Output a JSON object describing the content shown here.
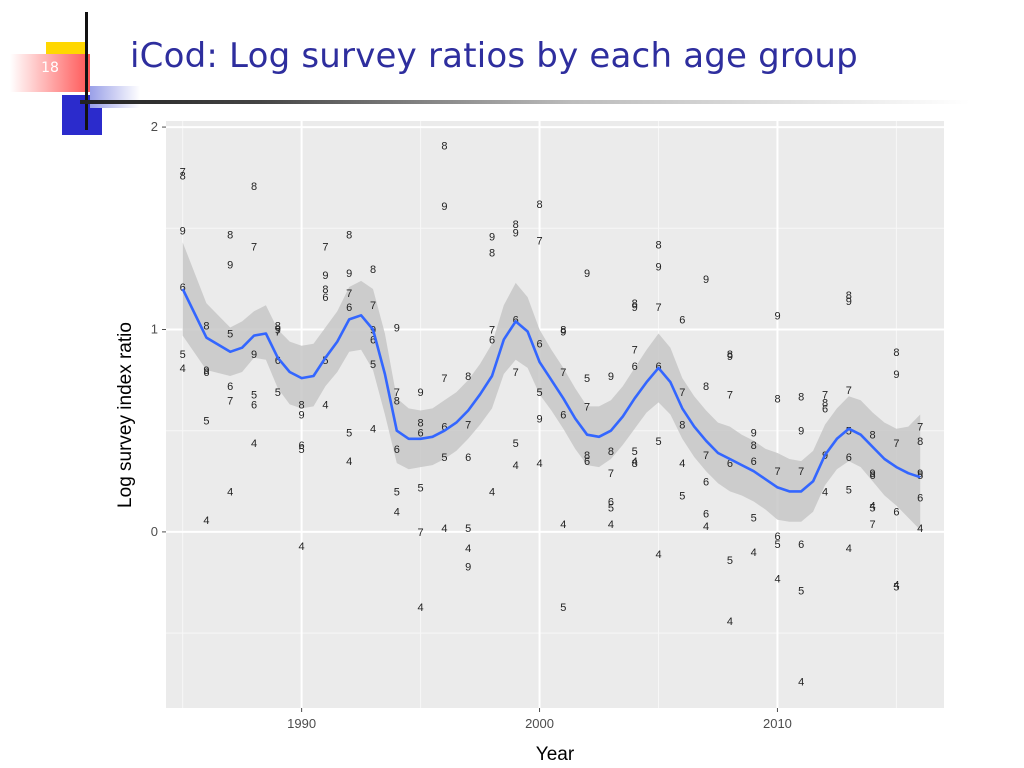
{
  "slide": {
    "title": "iCod: Log survey ratios by each age group",
    "number": "18"
  },
  "colors": {
    "title": "#2e2e9e",
    "accent_yellow": "#ffd700",
    "accent_blue": "#2b2bcc",
    "panel": "#ebebeb",
    "grid": "#ffffff",
    "smooth_line": "#3366ff",
    "ribbon": "#c7c7c7"
  },
  "chart_data": {
    "type": "scatter",
    "title": "",
    "xlabel": "Year",
    "ylabel": "Log survey index ratio",
    "xlim": [
      1984.3,
      2017.0
    ],
    "ylim": [
      -0.87,
      2.03
    ],
    "xticks": [
      1990,
      2000,
      2010
    ],
    "xtick_labels": [
      "1990",
      "2000",
      "2010"
    ],
    "yticks": [
      0,
      1,
      2
    ],
    "ytick_labels": [
      "0",
      "1",
      "2"
    ],
    "points": [
      {
        "x": 1985,
        "y": 1.78,
        "label": "7"
      },
      {
        "x": 1985,
        "y": 1.76,
        "label": "8"
      },
      {
        "x": 1985,
        "y": 1.49,
        "label": "9"
      },
      {
        "x": 1985,
        "y": 1.21,
        "label": "6"
      },
      {
        "x": 1985,
        "y": 0.88,
        "label": "5"
      },
      {
        "x": 1985,
        "y": 0.81,
        "label": "4"
      },
      {
        "x": 1986,
        "y": 1.02,
        "label": "8"
      },
      {
        "x": 1986,
        "y": 0.8,
        "label": "9"
      },
      {
        "x": 1986,
        "y": 0.79,
        "label": "6"
      },
      {
        "x": 1986,
        "y": 0.55,
        "label": "5"
      },
      {
        "x": 1986,
        "y": 0.06,
        "label": "4"
      },
      {
        "x": 1987,
        "y": 1.47,
        "label": "8"
      },
      {
        "x": 1987,
        "y": 1.32,
        "label": "9"
      },
      {
        "x": 1987,
        "y": 0.98,
        "label": "5"
      },
      {
        "x": 1987,
        "y": 0.72,
        "label": "6"
      },
      {
        "x": 1987,
        "y": 0.65,
        "label": "7"
      },
      {
        "x": 1987,
        "y": 0.2,
        "label": "4"
      },
      {
        "x": 1988,
        "y": 1.71,
        "label": "8"
      },
      {
        "x": 1988,
        "y": 1.41,
        "label": "7"
      },
      {
        "x": 1988,
        "y": 0.88,
        "label": "9"
      },
      {
        "x": 1988,
        "y": 0.68,
        "label": "5"
      },
      {
        "x": 1988,
        "y": 0.63,
        "label": "6"
      },
      {
        "x": 1988,
        "y": 0.44,
        "label": "4"
      },
      {
        "x": 1989,
        "y": 1.02,
        "label": "8"
      },
      {
        "x": 1989,
        "y": 1.0,
        "label": "9"
      },
      {
        "x": 1989,
        "y": 0.99,
        "label": "7"
      },
      {
        "x": 1989,
        "y": 0.85,
        "label": "6"
      },
      {
        "x": 1989,
        "y": 0.69,
        "label": "5"
      },
      {
        "x": 1990,
        "y": 0.63,
        "label": "8"
      },
      {
        "x": 1990,
        "y": 0.58,
        "label": "9"
      },
      {
        "x": 1990,
        "y": 0.43,
        "label": "6"
      },
      {
        "x": 1990,
        "y": 0.41,
        "label": "5"
      },
      {
        "x": 1990,
        "y": -0.07,
        "label": "4"
      },
      {
        "x": 1991,
        "y": 1.41,
        "label": "7"
      },
      {
        "x": 1991,
        "y": 1.27,
        "label": "9"
      },
      {
        "x": 1991,
        "y": 1.2,
        "label": "8"
      },
      {
        "x": 1991,
        "y": 1.16,
        "label": "6"
      },
      {
        "x": 1991,
        "y": 0.85,
        "label": "5"
      },
      {
        "x": 1991,
        "y": 0.63,
        "label": "4"
      },
      {
        "x": 1992,
        "y": 1.47,
        "label": "8"
      },
      {
        "x": 1992,
        "y": 1.28,
        "label": "9"
      },
      {
        "x": 1992,
        "y": 1.18,
        "label": "7"
      },
      {
        "x": 1992,
        "y": 1.11,
        "label": "6"
      },
      {
        "x": 1992,
        "y": 0.49,
        "label": "5"
      },
      {
        "x": 1992,
        "y": 0.35,
        "label": "4"
      },
      {
        "x": 1993,
        "y": 1.3,
        "label": "8"
      },
      {
        "x": 1993,
        "y": 1.12,
        "label": "7"
      },
      {
        "x": 1993,
        "y": 1.0,
        "label": "9"
      },
      {
        "x": 1993,
        "y": 0.95,
        "label": "6"
      },
      {
        "x": 1993,
        "y": 0.83,
        "label": "5"
      },
      {
        "x": 1993,
        "y": 0.51,
        "label": "4"
      },
      {
        "x": 1994,
        "y": 1.01,
        "label": "9"
      },
      {
        "x": 1994,
        "y": 0.69,
        "label": "7"
      },
      {
        "x": 1994,
        "y": 0.65,
        "label": "8"
      },
      {
        "x": 1994,
        "y": 0.41,
        "label": "6"
      },
      {
        "x": 1994,
        "y": 0.2,
        "label": "5"
      },
      {
        "x": 1994,
        "y": 0.1,
        "label": "4"
      },
      {
        "x": 1995,
        "y": 0.69,
        "label": "9"
      },
      {
        "x": 1995,
        "y": 0.54,
        "label": "8"
      },
      {
        "x": 1995,
        "y": 0.49,
        "label": "6"
      },
      {
        "x": 1995,
        "y": 0.22,
        "label": "5"
      },
      {
        "x": 1995,
        "y": 0.0,
        "label": "7"
      },
      {
        "x": 1995,
        "y": -0.37,
        "label": "4"
      },
      {
        "x": 1996,
        "y": 1.91,
        "label": "8"
      },
      {
        "x": 1996,
        "y": 1.61,
        "label": "9"
      },
      {
        "x": 1996,
        "y": 0.76,
        "label": "7"
      },
      {
        "x": 1996,
        "y": 0.52,
        "label": "6"
      },
      {
        "x": 1996,
        "y": 0.37,
        "label": "5"
      },
      {
        "x": 1996,
        "y": 0.02,
        "label": "4"
      },
      {
        "x": 1997,
        "y": 0.77,
        "label": "8"
      },
      {
        "x": 1997,
        "y": 0.53,
        "label": "7"
      },
      {
        "x": 1997,
        "y": 0.37,
        "label": "6"
      },
      {
        "x": 1997,
        "y": 0.02,
        "label": "5"
      },
      {
        "x": 1997,
        "y": -0.08,
        "label": "4"
      },
      {
        "x": 1997,
        "y": -0.17,
        "label": "9"
      },
      {
        "x": 1998,
        "y": 1.46,
        "label": "9"
      },
      {
        "x": 1998,
        "y": 1.38,
        "label": "8"
      },
      {
        "x": 1998,
        "y": 1.0,
        "label": "7"
      },
      {
        "x": 1998,
        "y": 0.95,
        "label": "6"
      },
      {
        "x": 1998,
        "y": 0.2,
        "label": "4"
      },
      {
        "x": 1999,
        "y": 1.52,
        "label": "8"
      },
      {
        "x": 1999,
        "y": 1.48,
        "label": "9"
      },
      {
        "x": 1999,
        "y": 1.05,
        "label": "6"
      },
      {
        "x": 1999,
        "y": 0.79,
        "label": "7"
      },
      {
        "x": 1999,
        "y": 0.44,
        "label": "5"
      },
      {
        "x": 1999,
        "y": 0.33,
        "label": "4"
      },
      {
        "x": 2000,
        "y": 1.62,
        "label": "8"
      },
      {
        "x": 2000,
        "y": 1.44,
        "label": "7"
      },
      {
        "x": 2000,
        "y": 0.93,
        "label": "6"
      },
      {
        "x": 2000,
        "y": 0.69,
        "label": "5"
      },
      {
        "x": 2000,
        "y": 0.56,
        "label": "9"
      },
      {
        "x": 2000,
        "y": 0.34,
        "label": "4"
      },
      {
        "x": 2001,
        "y": 1.0,
        "label": "8"
      },
      {
        "x": 2001,
        "y": 0.99,
        "label": "9"
      },
      {
        "x": 2001,
        "y": 0.79,
        "label": "7"
      },
      {
        "x": 2001,
        "y": 0.58,
        "label": "6"
      },
      {
        "x": 2001,
        "y": 0.04,
        "label": "4"
      },
      {
        "x": 2001,
        "y": -0.37,
        "label": "5"
      },
      {
        "x": 2002,
        "y": 1.28,
        "label": "9"
      },
      {
        "x": 2002,
        "y": 0.76,
        "label": "5"
      },
      {
        "x": 2002,
        "y": 0.62,
        "label": "7"
      },
      {
        "x": 2002,
        "y": 0.38,
        "label": "8"
      },
      {
        "x": 2002,
        "y": 0.35,
        "label": "6"
      },
      {
        "x": 2003,
        "y": 0.77,
        "label": "9"
      },
      {
        "x": 2003,
        "y": 0.4,
        "label": "8"
      },
      {
        "x": 2003,
        "y": 0.29,
        "label": "7"
      },
      {
        "x": 2003,
        "y": 0.15,
        "label": "6"
      },
      {
        "x": 2003,
        "y": 0.12,
        "label": "5"
      },
      {
        "x": 2003,
        "y": 0.04,
        "label": "4"
      },
      {
        "x": 2004,
        "y": 1.13,
        "label": "8"
      },
      {
        "x": 2004,
        "y": 1.11,
        "label": "9"
      },
      {
        "x": 2004,
        "y": 0.9,
        "label": "7"
      },
      {
        "x": 2004,
        "y": 0.82,
        "label": "6"
      },
      {
        "x": 2004,
        "y": 0.4,
        "label": "5"
      },
      {
        "x": 2004,
        "y": 0.34,
        "label": "8"
      },
      {
        "x": 2004,
        "y": 0.35,
        "label": "4"
      },
      {
        "x": 2005,
        "y": 1.42,
        "label": "8"
      },
      {
        "x": 2005,
        "y": 1.31,
        "label": "9"
      },
      {
        "x": 2005,
        "y": 1.11,
        "label": "7"
      },
      {
        "x": 2005,
        "y": 0.82,
        "label": "6"
      },
      {
        "x": 2005,
        "y": 0.45,
        "label": "5"
      },
      {
        "x": 2005,
        "y": -0.11,
        "label": "4"
      },
      {
        "x": 2006,
        "y": 1.05,
        "label": "6"
      },
      {
        "x": 2006,
        "y": 0.69,
        "label": "7"
      },
      {
        "x": 2006,
        "y": 0.53,
        "label": "8"
      },
      {
        "x": 2006,
        "y": 0.34,
        "label": "4"
      },
      {
        "x": 2006,
        "y": 0.18,
        "label": "5"
      },
      {
        "x": 2007,
        "y": 1.25,
        "label": "9"
      },
      {
        "x": 2007,
        "y": 0.72,
        "label": "8"
      },
      {
        "x": 2007,
        "y": 0.38,
        "label": "7"
      },
      {
        "x": 2007,
        "y": 0.25,
        "label": "6"
      },
      {
        "x": 2007,
        "y": 0.09,
        "label": "6"
      },
      {
        "x": 2007,
        "y": 0.03,
        "label": "4"
      },
      {
        "x": 2008,
        "y": 0.88,
        "label": "8"
      },
      {
        "x": 2008,
        "y": 0.87,
        "label": "9"
      },
      {
        "x": 2008,
        "y": 0.68,
        "label": "7"
      },
      {
        "x": 2008,
        "y": 0.34,
        "label": "6"
      },
      {
        "x": 2008,
        "y": -0.14,
        "label": "5"
      },
      {
        "x": 2008,
        "y": -0.44,
        "label": "4"
      },
      {
        "x": 2009,
        "y": 0.49,
        "label": "9"
      },
      {
        "x": 2009,
        "y": 0.43,
        "label": "8"
      },
      {
        "x": 2009,
        "y": 0.35,
        "label": "6"
      },
      {
        "x": 2009,
        "y": 0.07,
        "label": "5"
      },
      {
        "x": 2009,
        "y": -0.1,
        "label": "4"
      },
      {
        "x": 2010,
        "y": 1.07,
        "label": "9"
      },
      {
        "x": 2010,
        "y": 0.66,
        "label": "8"
      },
      {
        "x": 2010,
        "y": 0.3,
        "label": "7"
      },
      {
        "x": 2010,
        "y": -0.02,
        "label": "6"
      },
      {
        "x": 2010,
        "y": -0.06,
        "label": "5"
      },
      {
        "x": 2010,
        "y": -0.23,
        "label": "4"
      },
      {
        "x": 2011,
        "y": 0.67,
        "label": "8"
      },
      {
        "x": 2011,
        "y": 0.5,
        "label": "9"
      },
      {
        "x": 2011,
        "y": 0.3,
        "label": "7"
      },
      {
        "x": 2011,
        "y": -0.06,
        "label": "6"
      },
      {
        "x": 2011,
        "y": -0.29,
        "label": "5"
      },
      {
        "x": 2011,
        "y": -0.74,
        "label": "4"
      },
      {
        "x": 2012,
        "y": 0.68,
        "label": "7"
      },
      {
        "x": 2012,
        "y": 0.64,
        "label": "8"
      },
      {
        "x": 2012,
        "y": 0.61,
        "label": "6"
      },
      {
        "x": 2012,
        "y": 0.38,
        "label": "9"
      },
      {
        "x": 2012,
        "y": 0.2,
        "label": "4"
      },
      {
        "x": 2013,
        "y": 1.17,
        "label": "8"
      },
      {
        "x": 2013,
        "y": 1.14,
        "label": "9"
      },
      {
        "x": 2013,
        "y": 0.7,
        "label": "7"
      },
      {
        "x": 2013,
        "y": 0.5,
        "label": "5"
      },
      {
        "x": 2013,
        "y": 0.37,
        "label": "6"
      },
      {
        "x": 2013,
        "y": 0.21,
        "label": "5"
      },
      {
        "x": 2013,
        "y": -0.08,
        "label": "4"
      },
      {
        "x": 2014,
        "y": 0.48,
        "label": "8"
      },
      {
        "x": 2014,
        "y": 0.29,
        "label": "9"
      },
      {
        "x": 2014,
        "y": 0.28,
        "label": "6"
      },
      {
        "x": 2014,
        "y": 0.12,
        "label": "5"
      },
      {
        "x": 2014,
        "y": 0.13,
        "label": "4"
      },
      {
        "x": 2014,
        "y": 0.04,
        "label": "7"
      },
      {
        "x": 2015,
        "y": 0.89,
        "label": "8"
      },
      {
        "x": 2015,
        "y": 0.78,
        "label": "9"
      },
      {
        "x": 2015,
        "y": 0.44,
        "label": "7"
      },
      {
        "x": 2015,
        "y": 0.1,
        "label": "6"
      },
      {
        "x": 2015,
        "y": -0.26,
        "label": "4"
      },
      {
        "x": 2015,
        "y": -0.27,
        "label": "5"
      },
      {
        "x": 2016,
        "y": 0.52,
        "label": "7"
      },
      {
        "x": 2016,
        "y": 0.45,
        "label": "8"
      },
      {
        "x": 2016,
        "y": 0.29,
        "label": "9"
      },
      {
        "x": 2016,
        "y": 0.28,
        "label": "5"
      },
      {
        "x": 2016,
        "y": 0.17,
        "label": "6"
      },
      {
        "x": 2016,
        "y": 0.02,
        "label": "4"
      }
    ],
    "smooth": {
      "x": [
        1985,
        1986,
        1987,
        1987.5,
        1988,
        1988.5,
        1989,
        1989.5,
        1990,
        1990.5,
        1991,
        1991.5,
        1992,
        1992.5,
        1993,
        1993.5,
        1994,
        1994.5,
        1995,
        1995.5,
        1996,
        1996.5,
        1997,
        1997.5,
        1998,
        1998.5,
        1999,
        1999.5,
        2000,
        2000.5,
        2001,
        2001.5,
        2002,
        2002.5,
        2003,
        2003.5,
        2004,
        2004.5,
        2005,
        2005.5,
        2006,
        2006.5,
        2007,
        2007.5,
        2008,
        2008.5,
        2009,
        2009.5,
        2010,
        2010.5,
        2011,
        2011.5,
        2012,
        2012.5,
        2013,
        2013.5,
        2014,
        2014.5,
        2015,
        2015.5,
        2016
      ],
      "y": [
        1.2,
        0.96,
        0.89,
        0.91,
        0.97,
        0.98,
        0.86,
        0.79,
        0.76,
        0.77,
        0.86,
        0.94,
        1.05,
        1.07,
        1.0,
        0.78,
        0.5,
        0.46,
        0.46,
        0.47,
        0.5,
        0.54,
        0.6,
        0.68,
        0.77,
        0.95,
        1.04,
        0.99,
        0.84,
        0.75,
        0.66,
        0.56,
        0.48,
        0.47,
        0.5,
        0.57,
        0.66,
        0.74,
        0.81,
        0.74,
        0.61,
        0.52,
        0.45,
        0.39,
        0.36,
        0.33,
        0.3,
        0.26,
        0.22,
        0.2,
        0.2,
        0.25,
        0.38,
        0.46,
        0.51,
        0.48,
        0.42,
        0.36,
        0.32,
        0.29,
        0.27
      ],
      "lower": [
        0.97,
        0.8,
        0.77,
        0.79,
        0.86,
        0.85,
        0.71,
        0.63,
        0.61,
        0.62,
        0.72,
        0.79,
        0.89,
        0.9,
        0.8,
        0.58,
        0.34,
        0.31,
        0.32,
        0.33,
        0.36,
        0.4,
        0.46,
        0.53,
        0.61,
        0.78,
        0.85,
        0.81,
        0.68,
        0.6,
        0.51,
        0.41,
        0.33,
        0.32,
        0.36,
        0.43,
        0.51,
        0.59,
        0.64,
        0.58,
        0.46,
        0.37,
        0.3,
        0.24,
        0.2,
        0.18,
        0.15,
        0.11,
        0.06,
        0.05,
        0.05,
        0.1,
        0.23,
        0.31,
        0.35,
        0.32,
        0.25,
        0.18,
        0.13,
        0.07,
        0.01
      ],
      "upper": [
        1.43,
        1.13,
        1.01,
        1.04,
        1.09,
        1.12,
        1.0,
        0.94,
        0.92,
        0.93,
        1.01,
        1.09,
        1.21,
        1.24,
        1.2,
        0.98,
        0.66,
        0.61,
        0.6,
        0.61,
        0.65,
        0.69,
        0.75,
        0.83,
        0.93,
        1.12,
        1.23,
        1.16,
        1.0,
        0.9,
        0.81,
        0.71,
        0.62,
        0.62,
        0.65,
        0.72,
        0.81,
        0.9,
        0.98,
        0.91,
        0.76,
        0.67,
        0.6,
        0.54,
        0.52,
        0.48,
        0.45,
        0.41,
        0.39,
        0.36,
        0.35,
        0.4,
        0.53,
        0.61,
        0.67,
        0.65,
        0.59,
        0.54,
        0.51,
        0.52,
        0.58
      ]
    }
  }
}
